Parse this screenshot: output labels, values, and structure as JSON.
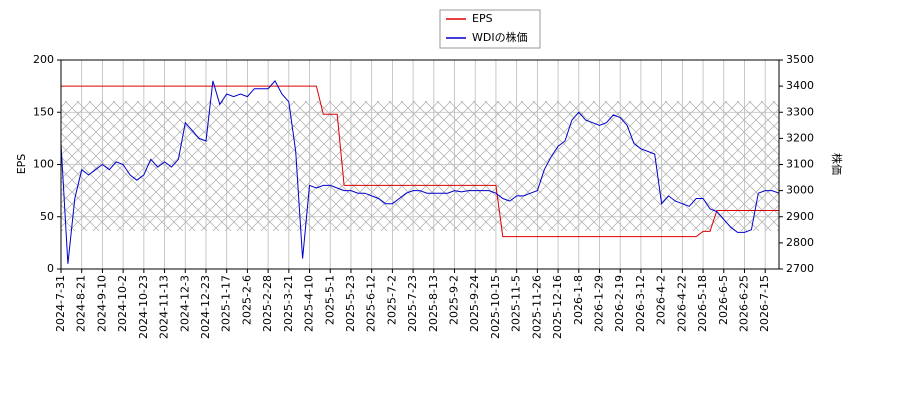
{
  "chart_data": {
    "type": "line",
    "ylabel": "EPS",
    "y2label": "株価",
    "categories": [
      "2024-7-31",
      null,
      null,
      "2024-8-21",
      null,
      null,
      "2024-9-10",
      null,
      null,
      "2024-10-2",
      null,
      null,
      "2024-10-23",
      null,
      null,
      "2024-11-13",
      null,
      null,
      "2024-12-3",
      null,
      null,
      "2024-12-23",
      null,
      null,
      "2025-1-17",
      null,
      null,
      "2025-2-6",
      null,
      null,
      "2025-2-28",
      null,
      null,
      "2025-3-21",
      null,
      null,
      "2025-4-10",
      null,
      null,
      "2025-5-1",
      null,
      null,
      "2025-5-23",
      null,
      null,
      "2025-6-12",
      null,
      null,
      "2025-7-2",
      null,
      null,
      "2025-7-23",
      null,
      null,
      "2025-8-13",
      null,
      null,
      "2025-9-2",
      null,
      null,
      "2025-9-24",
      null,
      null,
      "2025-10-15",
      null,
      null,
      "2025-11-5",
      null,
      null,
      "2025-11-26",
      null,
      null,
      "2025-12-16",
      null,
      null,
      "2026-1-8",
      null,
      null,
      "2026-1-29",
      null,
      null,
      "2026-2-19",
      null,
      null,
      "2026-3-12",
      null,
      null,
      "2026-4-2",
      null,
      null,
      "2026-4-22",
      null,
      null,
      "2026-5-18",
      null,
      null,
      "2026-6-5",
      null,
      null,
      "2026-6-25",
      null,
      null,
      "2026-7-15",
      null,
      null
    ],
    "series": [
      {
        "name": "EPS",
        "color": "#dd0000",
        "values": [
          175,
          175,
          175,
          175,
          175,
          175,
          175,
          175,
          175,
          175,
          175,
          175,
          175,
          175,
          175,
          175,
          175,
          175,
          175,
          175,
          175,
          175,
          175,
          175,
          175,
          175,
          175,
          175,
          175,
          175,
          175,
          175,
          175,
          175,
          175,
          175,
          175,
          175,
          148,
          148,
          148,
          80,
          80,
          80,
          80,
          80,
          80,
          80,
          80,
          80,
          80,
          80,
          80,
          80,
          80,
          80,
          80,
          80,
          80,
          80,
          80,
          80,
          80,
          80,
          31,
          31,
          31,
          31,
          31,
          31,
          31,
          31,
          31,
          31,
          31,
          31,
          31,
          31,
          31,
          31,
          31,
          31,
          31,
          31,
          31,
          31,
          31,
          31,
          31,
          31,
          31,
          31,
          31,
          36,
          36,
          56,
          56,
          56,
          56,
          56,
          56,
          56,
          56,
          56,
          56
        ]
      },
      {
        "name": "WDIの株価",
        "color": "#0000cc",
        "axis": "y2",
        "values": [
          3180,
          2720,
          2970,
          3080,
          3060,
          3080,
          3100,
          3080,
          3110,
          3100,
          3060,
          3040,
          3060,
          3120,
          3090,
          3110,
          3090,
          3120,
          3260,
          3230,
          3200,
          3190,
          3420,
          3330,
          3370,
          3360,
          3370,
          3360,
          3390,
          3390,
          3390,
          3420,
          3370,
          3340,
          3150,
          2740,
          3020,
          3010,
          3020,
          3020,
          3010,
          3000,
          3000,
          2990,
          2990,
          2980,
          2970,
          2950,
          2950,
          2970,
          2990,
          3000,
          3000,
          2990,
          2990,
          2990,
          2990,
          3000,
          2995,
          3000,
          3000,
          3000,
          3000,
          2990,
          2970,
          2960,
          2980,
          2980,
          2990,
          3000,
          3080,
          3130,
          3170,
          3190,
          3270,
          3300,
          3270,
          3260,
          3250,
          3260,
          3290,
          3280,
          3250,
          3180,
          3160,
          3150,
          3140,
          2950,
          2980,
          2960,
          2950,
          2940,
          2970,
          2970,
          2930,
          2920,
          2890,
          2860,
          2840,
          2840,
          2850,
          2990,
          3000,
          3000,
          2990
        ]
      }
    ],
    "ylim": [
      0,
      200
    ],
    "yticks": [
      0,
      50,
      100,
      150,
      200
    ],
    "y2lim": [
      2700,
      3500
    ],
    "y2ticks": [
      2700,
      2800,
      2900,
      3000,
      3100,
      3200,
      3300,
      3400,
      3500
    ],
    "grid": true
  }
}
